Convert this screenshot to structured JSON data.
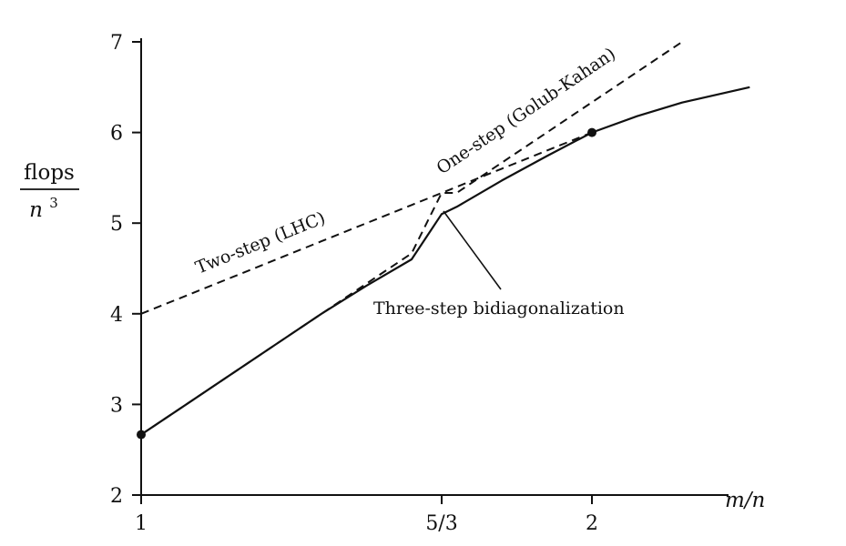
{
  "chart_data": {
    "type": "line",
    "xlabel": "m/n",
    "ylabel_numerator": "flops",
    "ylabel_denominator_base": "n",
    "ylabel_denominator_exp": "3",
    "xlim": [
      1,
      2.35
    ],
    "ylim": [
      2,
      7
    ],
    "x_ticks": [
      {
        "value": 1,
        "label": "1"
      },
      {
        "value": 1.6667,
        "label": "5/3"
      },
      {
        "value": 2,
        "label": "2"
      }
    ],
    "y_ticks": [
      {
        "value": 2,
        "label": "2"
      },
      {
        "value": 3,
        "label": "3"
      },
      {
        "value": 4,
        "label": "4"
      },
      {
        "value": 5,
        "label": "5"
      },
      {
        "value": 6,
        "label": "6"
      },
      {
        "value": 7,
        "label": "7"
      }
    ],
    "grid": false,
    "series": [
      {
        "name": "One-step (Golub-Kahan)",
        "style": "dashed",
        "x": [
          1,
          1.1,
          1.2,
          1.3,
          1.4,
          1.5,
          1.6,
          1.6667,
          1.7,
          1.8,
          1.9,
          2.0,
          2.1,
          2.2
        ],
        "y": [
          2.667,
          3.0,
          3.333,
          3.667,
          4.0,
          4.333,
          4.667,
          5.333,
          5.333,
          5.667,
          6.0,
          6.333,
          6.667,
          7.0
        ]
      },
      {
        "name": "Two-step (LHC)",
        "style": "dashed",
        "x": [
          1,
          1.2,
          1.4,
          1.6,
          1.6667,
          1.8,
          2.0
        ],
        "y": [
          4.0,
          4.4,
          4.8,
          5.2,
          5.333,
          5.6,
          6.0
        ]
      },
      {
        "name": "Three-step bidiagonalization",
        "style": "solid",
        "x": [
          1,
          1.1,
          1.2,
          1.3,
          1.4,
          1.5,
          1.6,
          1.6667,
          1.7,
          1.8,
          1.9,
          2.0,
          2.1,
          2.2,
          2.35
        ],
        "y": [
          2.667,
          3.0,
          3.333,
          3.667,
          4.0,
          4.31,
          4.6,
          5.1,
          5.18,
          5.47,
          5.74,
          6.0,
          6.18,
          6.33,
          6.5
        ]
      }
    ],
    "markers": [
      {
        "x": 1,
        "y": 2.667
      },
      {
        "x": 2,
        "y": 6.0
      }
    ],
    "annotations": [
      {
        "text": "One-step (Golub-Kahan)"
      },
      {
        "text": "Two-step (LHC)"
      },
      {
        "text": "Three-step bidiagonalization"
      }
    ]
  }
}
